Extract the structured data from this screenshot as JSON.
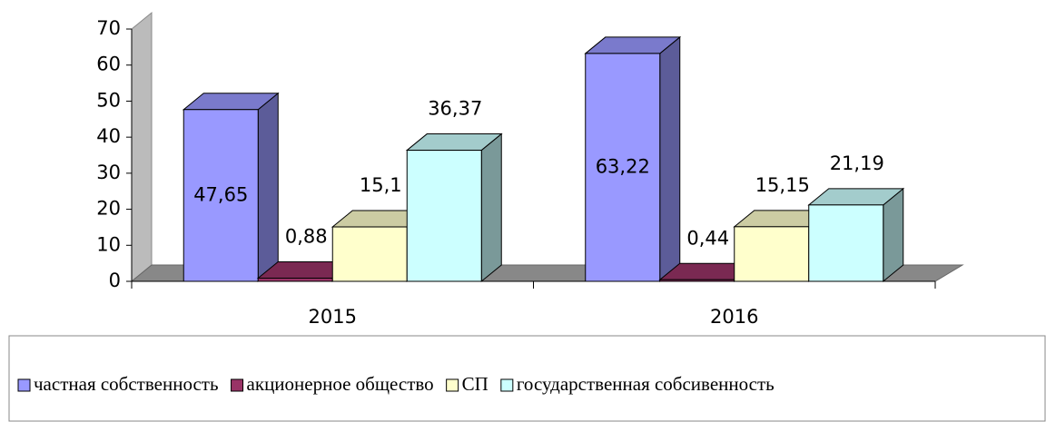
{
  "chart_data": {
    "type": "bar3d",
    "categories": [
      "2015",
      "2016"
    ],
    "series": [
      {
        "name": "частная собственность",
        "color": "#9999ff",
        "values": [
          47.65,
          63.22
        ],
        "value_labels": [
          "47,65",
          "63,22"
        ]
      },
      {
        "name": "акционерное общество",
        "color": "#993366",
        "values": [
          0.88,
          0.44
        ],
        "value_labels": [
          "0,88",
          "0,44"
        ]
      },
      {
        "name": "СП",
        "color": "#ffffcc",
        "values": [
          15.1,
          15.15
        ],
        "value_labels": [
          "15,1",
          "15,15"
        ]
      },
      {
        "name": "государственная собсивенность",
        "color": "#ccffff",
        "values": [
          36.37,
          21.19
        ],
        "value_labels": [
          "36,37",
          "21,19"
        ]
      }
    ],
    "ylim": [
      0,
      70
    ],
    "yticks": [
      0,
      10,
      20,
      30,
      40,
      50,
      60,
      70
    ],
    "legend": "bottom"
  }
}
